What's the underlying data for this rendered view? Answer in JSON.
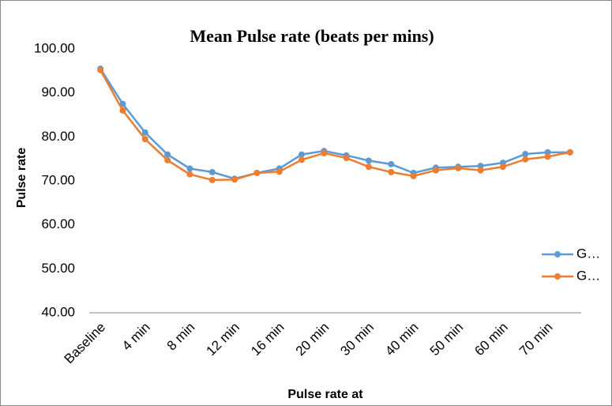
{
  "chart_data": {
    "type": "line",
    "title": "Mean Pulse rate (beats per mins)",
    "x_label": "Pulse rate at",
    "y_label": "Pulse rate",
    "categories": [
      "Baseline",
      null,
      "4 min",
      null,
      "8 min",
      null,
      "12 min",
      null,
      "16 min",
      null,
      "20 min",
      null,
      "30 min",
      null,
      "40 min",
      null,
      "50 min",
      null,
      "60 min",
      null,
      "70 min",
      null
    ],
    "series": [
      {
        "name": "G…",
        "color": "#5b9bd5",
        "values": [
          95.5,
          87.5,
          81.0,
          76.0,
          72.8,
          72.0,
          70.5,
          71.8,
          72.8,
          76.0,
          76.8,
          75.8,
          74.6,
          73.8,
          71.8,
          73.0,
          73.2,
          73.4,
          74.1,
          76.1,
          76.5,
          76.5
        ]
      },
      {
        "name": "G…",
        "color": "#ed7d31",
        "values": [
          95.2,
          86.0,
          79.5,
          74.7,
          71.5,
          70.2,
          70.3,
          71.8,
          72.1,
          74.8,
          76.3,
          75.2,
          73.2,
          72.0,
          71.1,
          72.4,
          72.9,
          72.4,
          73.2,
          74.9,
          75.5,
          76.5
        ]
      }
    ],
    "ylim": [
      40,
      100
    ],
    "yticks": [
      {
        "value": 40,
        "label": "40.00"
      },
      {
        "value": 50,
        "label": "50.00"
      },
      {
        "value": 60,
        "label": "60.00"
      },
      {
        "value": 70,
        "label": "70.00"
      },
      {
        "value": 80,
        "label": "80.00"
      },
      {
        "value": 90,
        "label": "90.00"
      },
      {
        "value": 100,
        "label": "100.00"
      }
    ],
    "grid": false,
    "legend": "right"
  }
}
